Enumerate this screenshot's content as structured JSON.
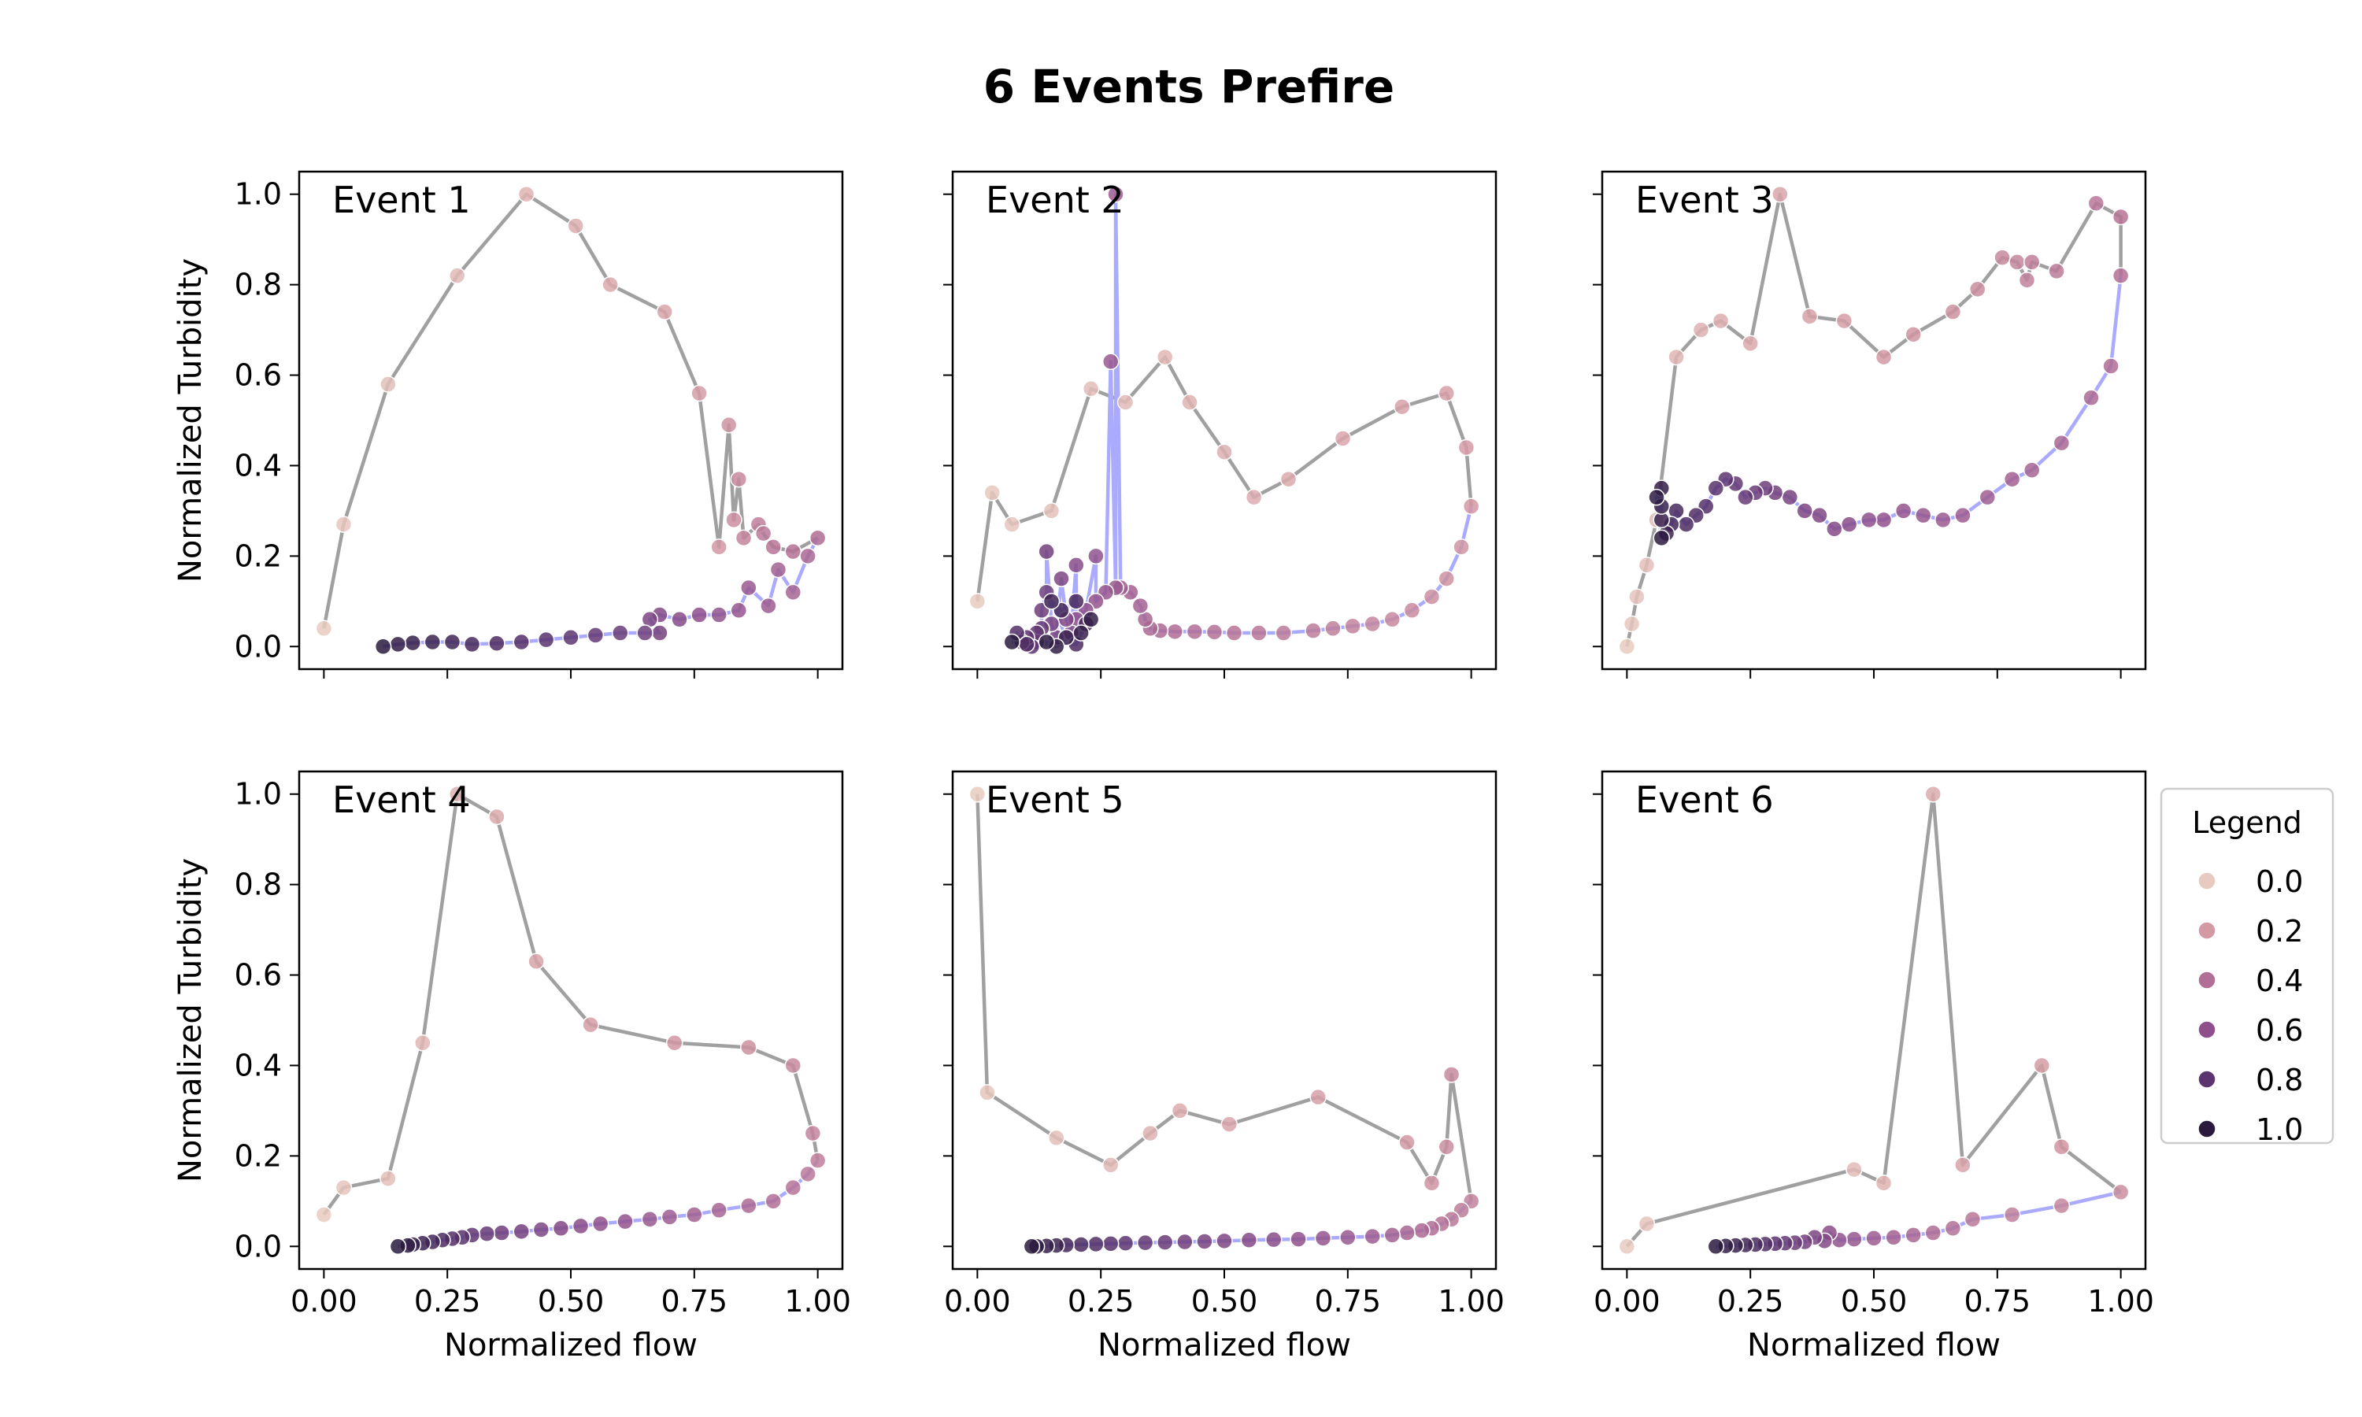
{
  "figure": {
    "title": "6 Events Prefire",
    "xlabel": "Normalized flow",
    "ylabel": "Normalized Turbidity",
    "xticks": [
      0.0,
      0.25,
      0.5,
      0.75,
      1.0
    ],
    "xtick_labels": [
      "0.00",
      "0.25",
      "0.50",
      "0.75",
      "1.00"
    ],
    "yticks": [
      0.0,
      0.2,
      0.4,
      0.6,
      0.8,
      1.0
    ],
    "ytick_labels": [
      "0.0",
      "0.2",
      "0.4",
      "0.6",
      "0.8",
      "1.0"
    ],
    "rising_limb_color": "#a0a0a0",
    "falling_limb_color": "#aaaaff",
    "legend": {
      "title": "Legend",
      "placement": "right",
      "entries": [
        {
          "label": "0.0",
          "color": "#e8cbc0"
        },
        {
          "label": "0.2",
          "color": "#d49aa4"
        },
        {
          "label": "0.4",
          "color": "#b26f95"
        },
        {
          "label": "0.6",
          "color": "#8e4f8c"
        },
        {
          "label": "0.8",
          "color": "#5c3470"
        },
        {
          "label": "1.0",
          "color": "#2a1a3e"
        }
      ]
    }
  },
  "chart_data": [
    {
      "type": "scatter",
      "label": "Event 1",
      "xlim": [
        -0.05,
        1.05
      ],
      "ylim": [
        -0.05,
        1.05
      ],
      "rising": [
        [
          0.0,
          0.04
        ],
        [
          0.04,
          0.27
        ],
        [
          0.13,
          0.58
        ],
        [
          0.27,
          0.82
        ],
        [
          0.41,
          1.0
        ],
        [
          0.51,
          0.93
        ],
        [
          0.58,
          0.8
        ],
        [
          0.69,
          0.74
        ],
        [
          0.76,
          0.56
        ],
        [
          0.8,
          0.22
        ],
        [
          0.82,
          0.49
        ],
        [
          0.83,
          0.28
        ],
        [
          0.84,
          0.37
        ],
        [
          0.85,
          0.24
        ],
        [
          0.88,
          0.27
        ],
        [
          0.89,
          0.25
        ],
        [
          0.91,
          0.22
        ],
        [
          0.95,
          0.21
        ],
        [
          1.0,
          0.24
        ]
      ],
      "falling": [
        [
          1.0,
          0.24
        ],
        [
          0.98,
          0.2
        ],
        [
          0.95,
          0.12
        ],
        [
          0.92,
          0.17
        ],
        [
          0.9,
          0.09
        ],
        [
          0.86,
          0.13
        ],
        [
          0.84,
          0.08
        ],
        [
          0.8,
          0.07
        ],
        [
          0.76,
          0.07
        ],
        [
          0.72,
          0.06
        ],
        [
          0.68,
          0.07
        ],
        [
          0.66,
          0.06
        ],
        [
          0.68,
          0.03
        ],
        [
          0.65,
          0.03
        ],
        [
          0.6,
          0.03
        ],
        [
          0.55,
          0.025
        ],
        [
          0.5,
          0.02
        ],
        [
          0.45,
          0.015
        ],
        [
          0.4,
          0.01
        ],
        [
          0.35,
          0.007
        ],
        [
          0.3,
          0.005
        ],
        [
          0.26,
          0.01
        ],
        [
          0.22,
          0.01
        ],
        [
          0.18,
          0.008
        ],
        [
          0.15,
          0.005
        ],
        [
          0.12,
          0.0
        ]
      ]
    },
    {
      "type": "scatter",
      "label": "Event 2",
      "xlim": [
        -0.05,
        1.05
      ],
      "ylim": [
        -0.05,
        1.05
      ],
      "rising": [
        [
          0.0,
          0.1
        ],
        [
          0.03,
          0.34
        ],
        [
          0.07,
          0.27
        ],
        [
          0.15,
          0.3
        ],
        [
          0.23,
          0.57
        ],
        [
          0.3,
          0.54
        ],
        [
          0.38,
          0.64
        ],
        [
          0.43,
          0.54
        ],
        [
          0.5,
          0.43
        ],
        [
          0.56,
          0.33
        ],
        [
          0.63,
          0.37
        ],
        [
          0.74,
          0.46
        ],
        [
          0.86,
          0.53
        ],
        [
          0.95,
          0.56
        ],
        [
          0.99,
          0.44
        ],
        [
          1.0,
          0.31
        ]
      ],
      "falling": [
        [
          1.0,
          0.31
        ],
        [
          0.98,
          0.22
        ],
        [
          0.95,
          0.15
        ],
        [
          0.92,
          0.11
        ],
        [
          0.88,
          0.08
        ],
        [
          0.84,
          0.06
        ],
        [
          0.8,
          0.05
        ],
        [
          0.76,
          0.045
        ],
        [
          0.72,
          0.04
        ],
        [
          0.68,
          0.035
        ],
        [
          0.62,
          0.03
        ],
        [
          0.57,
          0.03
        ],
        [
          0.52,
          0.03
        ],
        [
          0.48,
          0.032
        ],
        [
          0.44,
          0.033
        ],
        [
          0.4,
          0.033
        ],
        [
          0.37,
          0.035
        ],
        [
          0.35,
          0.04
        ],
        [
          0.34,
          0.06
        ],
        [
          0.33,
          0.09
        ],
        [
          0.31,
          0.12
        ],
        [
          0.29,
          0.13
        ],
        [
          0.28,
          1.0
        ],
        [
          0.28,
          0.13
        ],
        [
          0.27,
          0.63
        ],
        [
          0.26,
          0.12
        ],
        [
          0.24,
          0.1
        ],
        [
          0.24,
          0.2
        ],
        [
          0.22,
          0.08
        ],
        [
          0.2,
          0.06
        ],
        [
          0.2,
          0.18
        ],
        [
          0.19,
          0.03
        ],
        [
          0.18,
          0.06
        ],
        [
          0.17,
          0.15
        ],
        [
          0.16,
          0.02
        ],
        [
          0.15,
          0.05
        ],
        [
          0.14,
          0.21
        ],
        [
          0.14,
          0.12
        ],
        [
          0.13,
          0.08
        ],
        [
          0.13,
          0.04
        ],
        [
          0.12,
          0.01
        ],
        [
          0.12,
          0.03
        ],
        [
          0.11,
          0.0
        ],
        [
          0.1,
          0.02
        ],
        [
          0.09,
          0.01
        ],
        [
          0.08,
          0.03
        ],
        [
          0.1,
          0.005
        ],
        [
          0.2,
          0.005
        ],
        [
          0.22,
          0.05
        ],
        [
          0.2,
          0.1
        ],
        [
          0.17,
          0.08
        ],
        [
          0.15,
          0.1
        ],
        [
          0.18,
          0.02
        ],
        [
          0.21,
          0.03
        ],
        [
          0.23,
          0.06
        ],
        [
          0.16,
          0.0
        ],
        [
          0.14,
          0.01
        ],
        [
          0.07,
          0.01
        ]
      ]
    },
    {
      "type": "scatter",
      "label": "Event 3",
      "xlim": [
        -0.05,
        1.05
      ],
      "ylim": [
        -0.05,
        1.05
      ],
      "rising": [
        [
          0.0,
          0.0
        ],
        [
          0.01,
          0.05
        ],
        [
          0.02,
          0.11
        ],
        [
          0.04,
          0.18
        ],
        [
          0.06,
          0.28
        ],
        [
          0.1,
          0.64
        ],
        [
          0.15,
          0.7
        ],
        [
          0.19,
          0.72
        ],
        [
          0.25,
          0.67
        ],
        [
          0.31,
          1.0
        ],
        [
          0.37,
          0.73
        ],
        [
          0.44,
          0.72
        ],
        [
          0.52,
          0.64
        ],
        [
          0.58,
          0.69
        ],
        [
          0.66,
          0.74
        ],
        [
          0.71,
          0.79
        ],
        [
          0.76,
          0.86
        ],
        [
          0.79,
          0.85
        ],
        [
          0.81,
          0.81
        ],
        [
          0.82,
          0.85
        ],
        [
          0.87,
          0.83
        ],
        [
          0.95,
          0.98
        ],
        [
          1.0,
          0.95
        ],
        [
          1.0,
          0.82
        ]
      ],
      "falling": [
        [
          1.0,
          0.82
        ],
        [
          0.98,
          0.62
        ],
        [
          0.94,
          0.55
        ],
        [
          0.88,
          0.45
        ],
        [
          0.82,
          0.39
        ],
        [
          0.78,
          0.37
        ],
        [
          0.73,
          0.33
        ],
        [
          0.68,
          0.29
        ],
        [
          0.64,
          0.28
        ],
        [
          0.6,
          0.29
        ],
        [
          0.56,
          0.3
        ],
        [
          0.52,
          0.28
        ],
        [
          0.49,
          0.28
        ],
        [
          0.45,
          0.27
        ],
        [
          0.42,
          0.26
        ],
        [
          0.39,
          0.29
        ],
        [
          0.36,
          0.3
        ],
        [
          0.33,
          0.33
        ],
        [
          0.3,
          0.34
        ],
        [
          0.28,
          0.35
        ],
        [
          0.26,
          0.34
        ],
        [
          0.24,
          0.33
        ],
        [
          0.22,
          0.36
        ],
        [
          0.2,
          0.37
        ],
        [
          0.18,
          0.35
        ],
        [
          0.16,
          0.31
        ],
        [
          0.14,
          0.29
        ],
        [
          0.12,
          0.27
        ],
        [
          0.1,
          0.3
        ],
        [
          0.09,
          0.27
        ],
        [
          0.08,
          0.25
        ],
        [
          0.07,
          0.28
        ],
        [
          0.07,
          0.31
        ],
        [
          0.07,
          0.35
        ],
        [
          0.06,
          0.33
        ],
        [
          0.07,
          0.24
        ]
      ]
    },
    {
      "type": "scatter",
      "label": "Event 4",
      "xlim": [
        -0.05,
        1.05
      ],
      "ylim": [
        -0.05,
        1.05
      ],
      "rising": [
        [
          0.0,
          0.07
        ],
        [
          0.04,
          0.13
        ],
        [
          0.13,
          0.15
        ],
        [
          0.2,
          0.45
        ],
        [
          0.27,
          1.0
        ],
        [
          0.35,
          0.95
        ],
        [
          0.43,
          0.63
        ],
        [
          0.54,
          0.49
        ],
        [
          0.71,
          0.45
        ],
        [
          0.86,
          0.44
        ],
        [
          0.95,
          0.4
        ],
        [
          0.99,
          0.25
        ],
        [
          1.0,
          0.19
        ]
      ],
      "falling": [
        [
          1.0,
          0.19
        ],
        [
          0.98,
          0.16
        ],
        [
          0.95,
          0.13
        ],
        [
          0.91,
          0.1
        ],
        [
          0.86,
          0.09
        ],
        [
          0.8,
          0.08
        ],
        [
          0.75,
          0.07
        ],
        [
          0.7,
          0.065
        ],
        [
          0.66,
          0.06
        ],
        [
          0.61,
          0.055
        ],
        [
          0.56,
          0.05
        ],
        [
          0.52,
          0.045
        ],
        [
          0.48,
          0.04
        ],
        [
          0.44,
          0.037
        ],
        [
          0.4,
          0.033
        ],
        [
          0.36,
          0.03
        ],
        [
          0.33,
          0.028
        ],
        [
          0.3,
          0.025
        ],
        [
          0.28,
          0.02
        ],
        [
          0.26,
          0.017
        ],
        [
          0.24,
          0.014
        ],
        [
          0.22,
          0.01
        ],
        [
          0.2,
          0.007
        ],
        [
          0.18,
          0.004
        ],
        [
          0.17,
          0.002
        ],
        [
          0.15,
          0.0
        ]
      ]
    },
    {
      "type": "scatter",
      "label": "Event 5",
      "xlim": [
        -0.05,
        1.05
      ],
      "ylim": [
        -0.05,
        1.05
      ],
      "rising": [
        [
          0.0,
          1.0
        ],
        [
          0.02,
          0.34
        ],
        [
          0.16,
          0.24
        ],
        [
          0.27,
          0.18
        ],
        [
          0.35,
          0.25
        ],
        [
          0.41,
          0.3
        ],
        [
          0.51,
          0.27
        ],
        [
          0.69,
          0.33
        ],
        [
          0.87,
          0.23
        ],
        [
          0.92,
          0.14
        ],
        [
          0.95,
          0.22
        ],
        [
          0.96,
          0.38
        ],
        [
          1.0,
          0.1
        ]
      ],
      "falling": [
        [
          1.0,
          0.1
        ],
        [
          0.98,
          0.08
        ],
        [
          0.96,
          0.06
        ],
        [
          0.94,
          0.05
        ],
        [
          0.92,
          0.04
        ],
        [
          0.9,
          0.035
        ],
        [
          0.87,
          0.03
        ],
        [
          0.84,
          0.025
        ],
        [
          0.8,
          0.022
        ],
        [
          0.75,
          0.02
        ],
        [
          0.7,
          0.018
        ],
        [
          0.65,
          0.016
        ],
        [
          0.6,
          0.015
        ],
        [
          0.55,
          0.014
        ],
        [
          0.5,
          0.012
        ],
        [
          0.46,
          0.011
        ],
        [
          0.42,
          0.01
        ],
        [
          0.38,
          0.009
        ],
        [
          0.34,
          0.008
        ],
        [
          0.3,
          0.007
        ],
        [
          0.27,
          0.006
        ],
        [
          0.24,
          0.005
        ],
        [
          0.21,
          0.004
        ],
        [
          0.18,
          0.003
        ],
        [
          0.16,
          0.002
        ],
        [
          0.14,
          0.001
        ],
        [
          0.12,
          0.0
        ],
        [
          0.11,
          0.0
        ]
      ]
    },
    {
      "type": "scatter",
      "label": "Event 6",
      "xlim": [
        -0.05,
        1.05
      ],
      "ylim": [
        -0.05,
        1.05
      ],
      "rising": [
        [
          0.0,
          0.0
        ],
        [
          0.04,
          0.05
        ],
        [
          0.46,
          0.17
        ],
        [
          0.52,
          0.14
        ],
        [
          0.62,
          1.0
        ],
        [
          0.68,
          0.18
        ],
        [
          0.84,
          0.4
        ],
        [
          0.88,
          0.22
        ],
        [
          1.0,
          0.12
        ]
      ],
      "falling": [
        [
          1.0,
          0.12
        ],
        [
          0.88,
          0.09
        ],
        [
          0.78,
          0.07
        ],
        [
          0.7,
          0.06
        ],
        [
          0.66,
          0.04
        ],
        [
          0.62,
          0.03
        ],
        [
          0.58,
          0.025
        ],
        [
          0.54,
          0.02
        ],
        [
          0.5,
          0.018
        ],
        [
          0.46,
          0.016
        ],
        [
          0.43,
          0.014
        ],
        [
          0.41,
          0.03
        ],
        [
          0.4,
          0.012
        ],
        [
          0.38,
          0.02
        ],
        [
          0.36,
          0.01
        ],
        [
          0.34,
          0.008
        ],
        [
          0.32,
          0.007
        ],
        [
          0.3,
          0.006
        ],
        [
          0.28,
          0.005
        ],
        [
          0.26,
          0.004
        ],
        [
          0.24,
          0.003
        ],
        [
          0.22,
          0.002
        ],
        [
          0.2,
          0.001
        ],
        [
          0.18,
          0.0
        ]
      ]
    }
  ]
}
